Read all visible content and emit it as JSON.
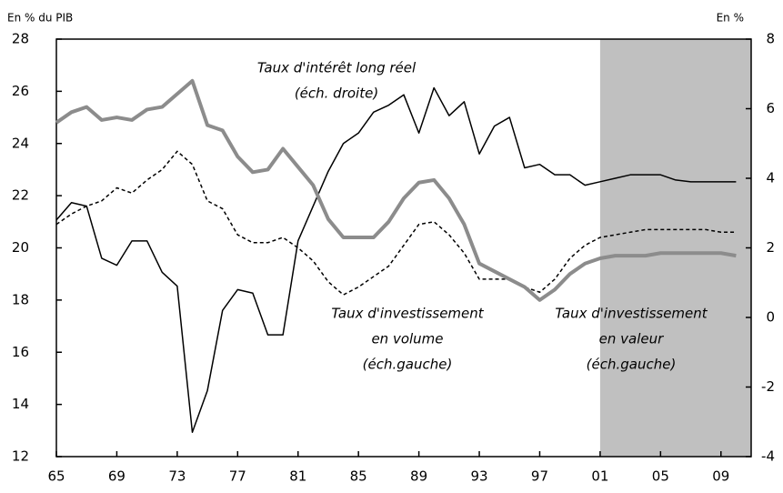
{
  "chart_data": {
    "type": "line",
    "y_axis_label": "En % du PIB",
    "y2_axis_label": "En %",
    "x": [
      1965,
      1966,
      1967,
      1968,
      1969,
      1970,
      1971,
      1972,
      1973,
      1974,
      1975,
      1976,
      1977,
      1978,
      1979,
      1980,
      1981,
      1982,
      1983,
      1984,
      1985,
      1986,
      1987,
      1988,
      1989,
      1990,
      1991,
      1992,
      1993,
      1994,
      1995,
      1996,
      1997,
      1998,
      1999,
      2000,
      2001,
      2002,
      2003,
      2004,
      2005,
      2006,
      2007,
      2008,
      2009,
      2010
    ],
    "xlim": [
      1965,
      2011
    ],
    "xticks": [
      {
        "value": 1965,
        "label": "65"
      },
      {
        "value": 1969,
        "label": "69"
      },
      {
        "value": 1973,
        "label": "73"
      },
      {
        "value": 1977,
        "label": "77"
      },
      {
        "value": 1981,
        "label": "81"
      },
      {
        "value": 1985,
        "label": "85"
      },
      {
        "value": 1989,
        "label": "89"
      },
      {
        "value": 1993,
        "label": "93"
      },
      {
        "value": 1997,
        "label": "97"
      },
      {
        "value": 2001,
        "label": "01"
      },
      {
        "value": 2005,
        "label": "05"
      },
      {
        "value": 2009,
        "label": "09"
      }
    ],
    "ylim": [
      12,
      28
    ],
    "yticks": [
      12,
      14,
      16,
      18,
      20,
      22,
      24,
      26,
      28
    ],
    "y2lim": [
      -4,
      8
    ],
    "y2ticks": [
      -4,
      -2,
      0,
      2,
      4,
      6,
      8
    ],
    "shaded_x": [
      2001,
      2011
    ],
    "shade_color": "#c0c0c0",
    "series": [
      {
        "name": "Taux d'intérêt long réel",
        "axis": "y2",
        "color": "#000000",
        "width": 1.5,
        "dash": "none",
        "values": [
          2.8,
          3.3,
          3.2,
          1.7,
          1.5,
          2.2,
          2.2,
          1.3,
          0.9,
          -3.3,
          -2.1,
          0.2,
          0.8,
          0.7,
          -0.5,
          -0.5,
          2.2,
          3.2,
          4.2,
          5.0,
          5.3,
          5.9,
          6.1,
          6.4,
          5.3,
          6.6,
          5.8,
          6.2,
          4.7,
          5.5,
          5.75,
          4.3,
          4.4,
          4.1,
          4.1,
          3.8,
          3.9,
          4.0,
          4.1,
          4.1,
          4.1,
          3.95,
          3.9,
          3.9,
          3.9,
          3.9
        ]
      },
      {
        "name": "Taux d'investissement en volume",
        "axis": "y",
        "color": "#000000",
        "width": 1.5,
        "dash": "4 3",
        "values": [
          20.9,
          21.3,
          21.6,
          21.8,
          22.3,
          22.1,
          22.6,
          23.0,
          23.7,
          23.2,
          21.8,
          21.5,
          20.5,
          20.2,
          20.2,
          20.4,
          20.0,
          19.5,
          18.7,
          18.2,
          18.5,
          18.9,
          19.3,
          20.1,
          20.9,
          21.0,
          20.5,
          19.8,
          18.8,
          18.8,
          18.8,
          18.5,
          18.3,
          18.8,
          19.6,
          20.1,
          20.4,
          20.5,
          20.6,
          20.7,
          20.7,
          20.7,
          20.7,
          20.7,
          20.6,
          20.6
        ]
      },
      {
        "name": "Taux d'investissement en valeur",
        "axis": "y",
        "color": "#8c8c8c",
        "width": 4,
        "dash": "none",
        "values": [
          24.8,
          25.2,
          25.4,
          24.9,
          25.0,
          24.9,
          25.3,
          25.4,
          25.9,
          26.4,
          24.7,
          24.5,
          23.5,
          22.9,
          23.0,
          23.8,
          23.1,
          22.4,
          21.1,
          20.4,
          20.4,
          20.4,
          21.0,
          21.9,
          22.5,
          22.6,
          21.9,
          20.9,
          19.4,
          19.1,
          18.8,
          18.5,
          18.0,
          18.4,
          19.0,
          19.4,
          19.6,
          19.7,
          19.7,
          19.7,
          19.8,
          19.8,
          19.8,
          19.8,
          19.8,
          19.7
        ]
      }
    ],
    "annotations": [
      [
        "Taux d'intérêt long réel",
        "(éch. droite)"
      ],
      [
        "Taux d'investissement",
        "en volume",
        "(éch.gauche)"
      ],
      [
        "Taux d'investissement",
        "en valeur",
        "(éch.gauche)"
      ]
    ]
  }
}
